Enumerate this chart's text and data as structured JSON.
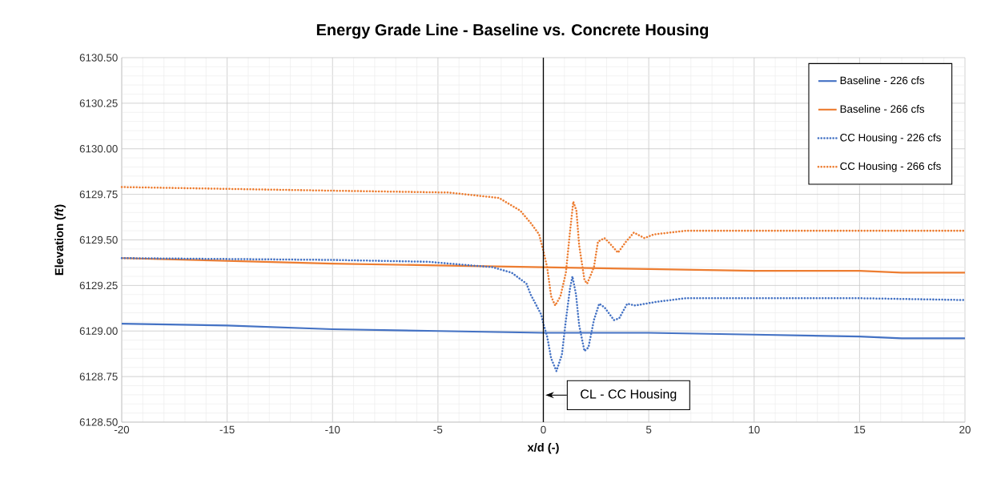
{
  "chart_data": {
    "type": "line",
    "title": "Energy Grade Line - Baseline vs. Concrete Housing",
    "xlabel": "x/d (-)",
    "ylabel": "Elevation (*ft*)",
    "xlim": [
      -20,
      20
    ],
    "xticks": [
      -20,
      -15,
      -10,
      -5,
      0,
      5,
      10,
      15,
      20
    ],
    "ylim": [
      6128.5,
      6130.5
    ],
    "yticks": [
      {
        "value": 6128.5,
        "label": "6128.50"
      },
      {
        "value": 6128.75,
        "label": "6128.75"
      },
      {
        "value": 6129.0,
        "label": "6129.00"
      },
      {
        "value": 6129.25,
        "label": "6129.25"
      },
      {
        "value": 6129.5,
        "label": "6129.50"
      },
      {
        "value": 6129.75,
        "label": "6129.75"
      },
      {
        "value": 6130.0,
        "label": "6130.00"
      },
      {
        "value": 6130.25,
        "label": "6130.25"
      },
      {
        "value": 6130.5,
        "label": "6130.50"
      }
    ],
    "grid": true,
    "legend": "top right",
    "marker": "none",
    "series": [
      {
        "name": "Baseline - 226 cfs",
        "color": "#4472c4",
        "line_style": "solid",
        "x": [
          -20,
          -15,
          -10,
          -5,
          0,
          5,
          10,
          15,
          17,
          20
        ],
        "values": [
          6129.04,
          6129.03,
          6129.01,
          6129.0,
          6128.99,
          6128.99,
          6128.98,
          6128.97,
          6128.96,
          6128.96
        ]
      },
      {
        "name": "Baseline - 266 cfs",
        "color": "#ed7d31",
        "line_style": "solid",
        "x": [
          -20,
          -10,
          -5,
          0,
          5,
          10,
          15,
          17,
          20
        ],
        "values": [
          6129.4,
          6129.37,
          6129.36,
          6129.35,
          6129.34,
          6129.33,
          6129.33,
          6129.32,
          6129.32
        ]
      },
      {
        "name": "CC Housing - 226 cfs",
        "color": "#4472c4",
        "line_style": "dotted",
        "x": [
          -20,
          -10,
          -5.5,
          -2.4,
          -1.5,
          -0.8,
          -0.6,
          -0.1,
          0,
          0.18,
          0.37,
          0.62,
          0.88,
          1.07,
          1.26,
          1.38,
          1.55,
          1.7,
          1.95,
          2.14,
          2.4,
          2.65,
          2.9,
          3.35,
          3.6,
          3.98,
          4.36,
          4.86,
          5.37,
          6.76,
          10,
          15,
          20
        ],
        "values": [
          6129.4,
          6129.39,
          6129.38,
          6129.35,
          6129.32,
          6129.26,
          6129.2,
          6129.09,
          6129.04,
          6128.97,
          6128.85,
          6128.78,
          6128.87,
          6129.06,
          6129.23,
          6129.3,
          6129.2,
          6129.03,
          6128.89,
          6128.91,
          6129.06,
          6129.15,
          6129.13,
          6129.06,
          6129.07,
          6129.15,
          6129.14,
          6129.15,
          6129.16,
          6129.18,
          6129.18,
          6129.18,
          6129.17
        ]
      },
      {
        "name": "CC Housing - 266 cfs",
        "color": "#ed7d31",
        "line_style": "dotted",
        "x": [
          -20,
          -15,
          -10,
          -4.5,
          -2.1,
          -1.09,
          -0.58,
          -0.2,
          0,
          0.18,
          0.37,
          0.56,
          0.81,
          1.07,
          1.26,
          1.42,
          1.57,
          1.7,
          1.95,
          2.08,
          2.4,
          2.59,
          2.9,
          3.16,
          3.54,
          3.92,
          4.29,
          4.8,
          5.24,
          6.76,
          10,
          15,
          20
        ],
        "values": [
          6129.79,
          6129.78,
          6129.77,
          6129.76,
          6129.73,
          6129.66,
          6129.59,
          6129.53,
          6129.44,
          6129.35,
          6129.19,
          6129.14,
          6129.19,
          6129.32,
          6129.54,
          6129.71,
          6129.66,
          6129.47,
          6129.28,
          6129.26,
          6129.35,
          6129.49,
          6129.51,
          6129.48,
          6129.43,
          6129.49,
          6129.54,
          6129.51,
          6129.53,
          6129.55,
          6129.55,
          6129.55,
          6129.55
        ]
      }
    ],
    "ref_lines": [
      {
        "axis": "x",
        "value": 0,
        "label": "CL - CC Housing",
        "color": "#000000",
        "line_style": "solid"
      }
    ]
  }
}
